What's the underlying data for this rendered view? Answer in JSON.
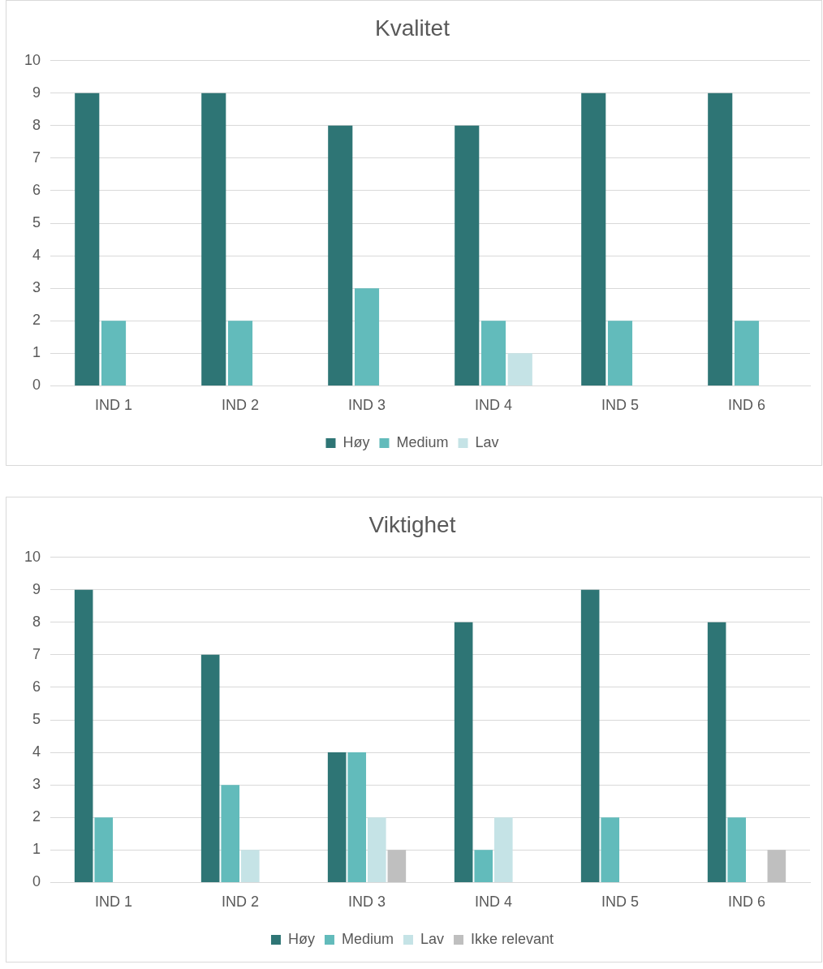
{
  "chart_data": [
    {
      "type": "bar",
      "title": "Kvalitet",
      "categories": [
        "IND 1",
        "IND 2",
        "IND 3",
        "IND 4",
        "IND 5",
        "IND 6"
      ],
      "series": [
        {
          "name": "Høy",
          "color": "#2e7575",
          "values": [
            9,
            9,
            8,
            8,
            9,
            9
          ]
        },
        {
          "name": "Medium",
          "color": "#62bbbb",
          "values": [
            2,
            2,
            3,
            2,
            2,
            2
          ]
        },
        {
          "name": "Lav",
          "color": "#c5e3e6",
          "values": [
            0,
            0,
            0,
            1,
            0,
            0
          ]
        }
      ],
      "ylim": [
        0,
        10
      ],
      "yticks": [
        0,
        1,
        2,
        3,
        4,
        5,
        6,
        7,
        8,
        9,
        10
      ],
      "grid": "y",
      "legend": "bottom"
    },
    {
      "type": "bar",
      "title": "Viktighet",
      "categories": [
        "IND 1",
        "IND 2",
        "IND 3",
        "IND 4",
        "IND 5",
        "IND 6"
      ],
      "series": [
        {
          "name": "Høy",
          "color": "#2e7575",
          "values": [
            9,
            7,
            4,
            8,
            9,
            8
          ]
        },
        {
          "name": "Medium",
          "color": "#62bbbb",
          "values": [
            2,
            3,
            4,
            1,
            2,
            2
          ]
        },
        {
          "name": "Lav",
          "color": "#c5e3e6",
          "values": [
            0,
            1,
            2,
            2,
            0,
            0
          ]
        },
        {
          "name": "Ikke relevant",
          "color": "#bfbfbf",
          "values": [
            0,
            0,
            1,
            0,
            0,
            1
          ]
        }
      ],
      "ylim": [
        0,
        10
      ],
      "yticks": [
        0,
        1,
        2,
        3,
        4,
        5,
        6,
        7,
        8,
        9,
        10
      ],
      "grid": "y",
      "legend": "bottom"
    }
  ]
}
